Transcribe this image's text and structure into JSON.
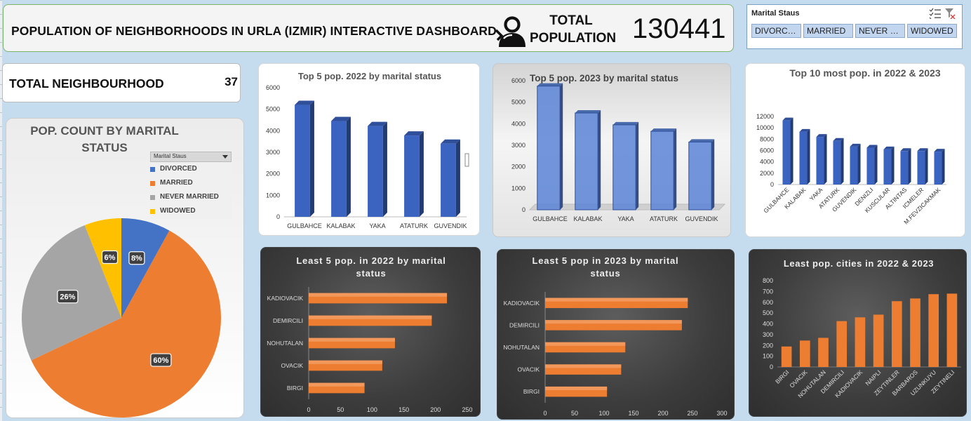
{
  "header": {
    "title": "POPULATION OF NEIGHBORHOODS IN URLA (IZMIR) INTERACTIVE DASHBOARD",
    "total_label": "TOTAL POPULATION",
    "total_value": "130441"
  },
  "slicer": {
    "title": "Marital Staus",
    "options": [
      "DIVORCED",
      "MARRIED",
      "NEVER M...",
      "WIDOWED"
    ]
  },
  "neighbourhood": {
    "label": "TOTAL NEIGHBOURHOOD",
    "value": "37"
  },
  "pie": {
    "title": "POP. COUNT BY MARITAL STATUS",
    "legend_head": "Marital Staus",
    "legend": [
      {
        "name": "DIVORCED",
        "color": "#4472c4"
      },
      {
        "name": "MARRIED",
        "color": "#ed7d31"
      },
      {
        "name": "NEVER MARRIED",
        "color": "#a5a5a5"
      },
      {
        "name": "WIDOWED",
        "color": "#ffc000"
      }
    ]
  },
  "chart_data": [
    {
      "id": "pie",
      "type": "pie",
      "title": "POP. COUNT BY MARITAL STATUS",
      "categories": [
        "DIVORCED",
        "MARRIED",
        "NEVER MARRIED",
        "WIDOWED"
      ],
      "values": [
        8,
        60,
        26,
        6
      ],
      "labels": [
        "8%",
        "60%",
        "26%",
        "6%"
      ],
      "colors": [
        "#4472c4",
        "#ed7d31",
        "#a5a5a5",
        "#ffc000"
      ]
    },
    {
      "id": "top5_2022",
      "type": "bar",
      "title": "Top 5 pop. 2022 by marital status",
      "categories": [
        "GULBAHCE",
        "KALABAK",
        "YAKA",
        "ATATURK",
        "GUVENDIK"
      ],
      "values": [
        5200,
        4450,
        4220,
        3780,
        3400
      ],
      "ylim": [
        0,
        6000
      ],
      "yticks": [
        "0",
        "1000",
        "2000",
        "3000",
        "4000",
        "5000",
        "6000"
      ]
    },
    {
      "id": "top5_2023",
      "type": "bar",
      "title": "Top 5 pop. 2023 by marital status",
      "categories": [
        "GULBAHCE",
        "KALABAK",
        "YAKA",
        "ATATURK",
        "GUVENDIK"
      ],
      "values": [
        5750,
        4500,
        3950,
        3650,
        3150
      ],
      "ylim": [
        0,
        6000
      ],
      "yticks": [
        "0",
        "1000",
        "2000",
        "3000",
        "4000",
        "5000",
        "6000"
      ]
    },
    {
      "id": "top10",
      "type": "bar",
      "title": "Top 10 most pop. in 2022 & 2023",
      "categories": [
        "GULBAHCE",
        "KALABAK",
        "YAKA",
        "ATATURK",
        "GUVENDIK",
        "DENIZLI",
        "KUSCULAR",
        "ALTINTAS",
        "ICMELER",
        "M.FEVZICAKMAK"
      ],
      "values": [
        11300,
        9300,
        8400,
        7700,
        6700,
        6500,
        6200,
        5900,
        5900,
        5800
      ],
      "ylim": [
        0,
        12000
      ],
      "yticks": [
        "0",
        "2000",
        "4000",
        "6000",
        "8000",
        "10000",
        "12000"
      ]
    },
    {
      "id": "least5_2022",
      "type": "bar",
      "orientation": "horizontal",
      "title": "Least 5 pop. in 2022 by marital status",
      "categories": [
        "KADIOVACIK",
        "DEMIRCILI",
        "NOHUTALAN",
        "OVACIK",
        "BIRGI"
      ],
      "values": [
        218,
        194,
        136,
        116,
        88
      ],
      "xlim": [
        0,
        250
      ],
      "xticks": [
        "0",
        "50",
        "100",
        "150",
        "200",
        "250"
      ]
    },
    {
      "id": "least5_2023",
      "type": "bar",
      "orientation": "horizontal",
      "title": "Least 5 pop in 2023 by marital status",
      "categories": [
        "KADIOVACIK",
        "DEMIRCILI",
        "NOHUTALAN",
        "OVACIK",
        "BIRGI"
      ],
      "values": [
        242,
        232,
        136,
        129,
        105
      ],
      "xlim": [
        0,
        300
      ],
      "xticks": [
        "0",
        "50",
        "100",
        "150",
        "200",
        "250",
        "300"
      ]
    },
    {
      "id": "least_cities",
      "type": "bar",
      "title": "Least pop. cities in 2022 & 2023",
      "categories": [
        "BIRGI",
        "OVACIK",
        "NOHUTALAN",
        "DEMIRCILI",
        "KADIOVACIK",
        "NAIPLI",
        "ZEYTINLER",
        "BARBAROS",
        "UZUNKUYU",
        "ZEYTINELI"
      ],
      "values": [
        190,
        245,
        270,
        425,
        460,
        485,
        610,
        635,
        675,
        680
      ],
      "ylim": [
        0,
        800
      ],
      "yticks": [
        "0",
        "100",
        "200",
        "300",
        "400",
        "500",
        "600",
        "700",
        "800"
      ]
    }
  ]
}
